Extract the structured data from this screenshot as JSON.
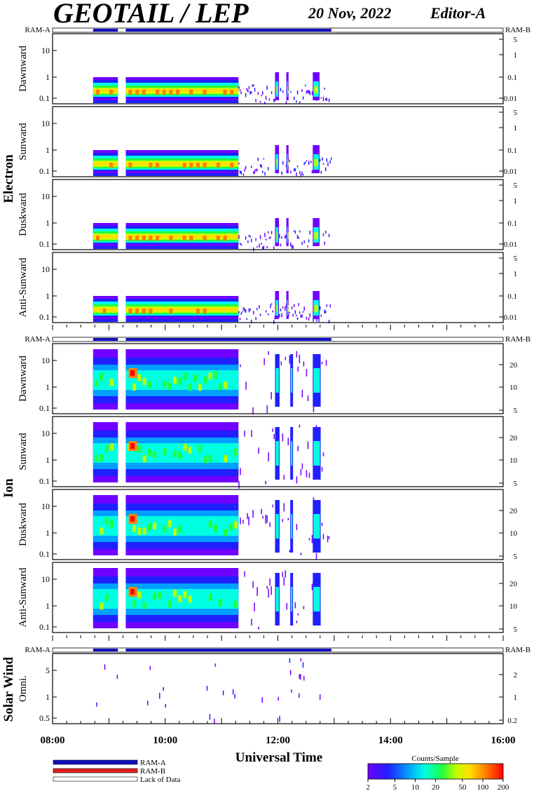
{
  "header": {
    "title": "GEOTAIL / LEP",
    "date": "20 Nov, 2022",
    "editor": "Editor-A"
  },
  "ram_labels": {
    "left": "RAM-A",
    "right": "RAM-B"
  },
  "colors": {
    "ram_a": "#1010c0",
    "ram_b": "#e02020",
    "lack_of_data": "#ffffff",
    "colorscale": [
      "#7000ff",
      "#2020ff",
      "#00a0ff",
      "#00ffe0",
      "#20ff40",
      "#c0ff00",
      "#ffe000",
      "#ff8000",
      "#ff0000"
    ]
  },
  "chart_data": {
    "type": "heatmap",
    "xlabel": "Universal Time",
    "x_ticks": [
      "08:00",
      "10:00",
      "12:00",
      "14:00",
      "16:00"
    ],
    "x_range_hours": [
      8,
      16
    ],
    "ram_a_intervals_hours": [
      [
        8.72,
        9.16
      ],
      [
        9.3,
        12.95
      ]
    ],
    "data_coverage_hours": [
      [
        8.72,
        9.16
      ],
      [
        9.3,
        12.95
      ]
    ],
    "groups": [
      {
        "name": "Electron",
        "panels": [
          {
            "label": "Dawnward",
            "y_ticks": [
              "10",
              "1",
              "0.1"
            ],
            "right_ticks": [
              "5",
              "1",
              "0.1",
              "0.01"
            ]
          },
          {
            "label": "Sunward",
            "y_ticks": [
              "10",
              "1",
              "0.1"
            ],
            "right_ticks": [
              "5",
              "1",
              "0.1",
              "0.01"
            ]
          },
          {
            "label": "Duskward",
            "y_ticks": [
              "10",
              "1",
              "0.1"
            ],
            "right_ticks": [
              "5",
              "1",
              "0.1",
              "0.01"
            ]
          },
          {
            "label": "Anti-Sunward",
            "y_ticks": [
              "10",
              "1",
              "0.1"
            ],
            "right_ticks": [
              "5",
              "1",
              "0.1",
              "0.01"
            ]
          }
        ]
      },
      {
        "name": "Ion",
        "panels": [
          {
            "label": "Dawnward",
            "y_ticks": [
              "10",
              "1",
              "0.1"
            ],
            "right_ticks": [
              "20",
              "10",
              "5"
            ]
          },
          {
            "label": "Sunward",
            "y_ticks": [
              "10",
              "1",
              "0.1"
            ],
            "right_ticks": [
              "20",
              "10",
              "5"
            ]
          },
          {
            "label": "Duskward",
            "y_ticks": [
              "10",
              "1",
              "0.1"
            ],
            "right_ticks": [
              "20",
              "10",
              "5"
            ]
          },
          {
            "label": "Anti-Sunward",
            "y_ticks": [
              "10",
              "1",
              "0.1"
            ],
            "right_ticks": [
              "20",
              "10",
              "5"
            ]
          }
        ]
      },
      {
        "name": "Solar Wind",
        "panels": [
          {
            "label": "Omni.",
            "y_ticks": [
              "5",
              "1",
              "0.5"
            ],
            "right_ticks": [
              "2",
              "1",
              "0.2"
            ]
          }
        ]
      }
    ],
    "legend": {
      "items": [
        "RAM-A",
        "RAM-B",
        "Lack of Data"
      ]
    },
    "colorbar": {
      "title": "Counts/Sample",
      "ticks": [
        "2",
        "5",
        "10",
        "20",
        "50",
        "100",
        "200"
      ]
    }
  }
}
